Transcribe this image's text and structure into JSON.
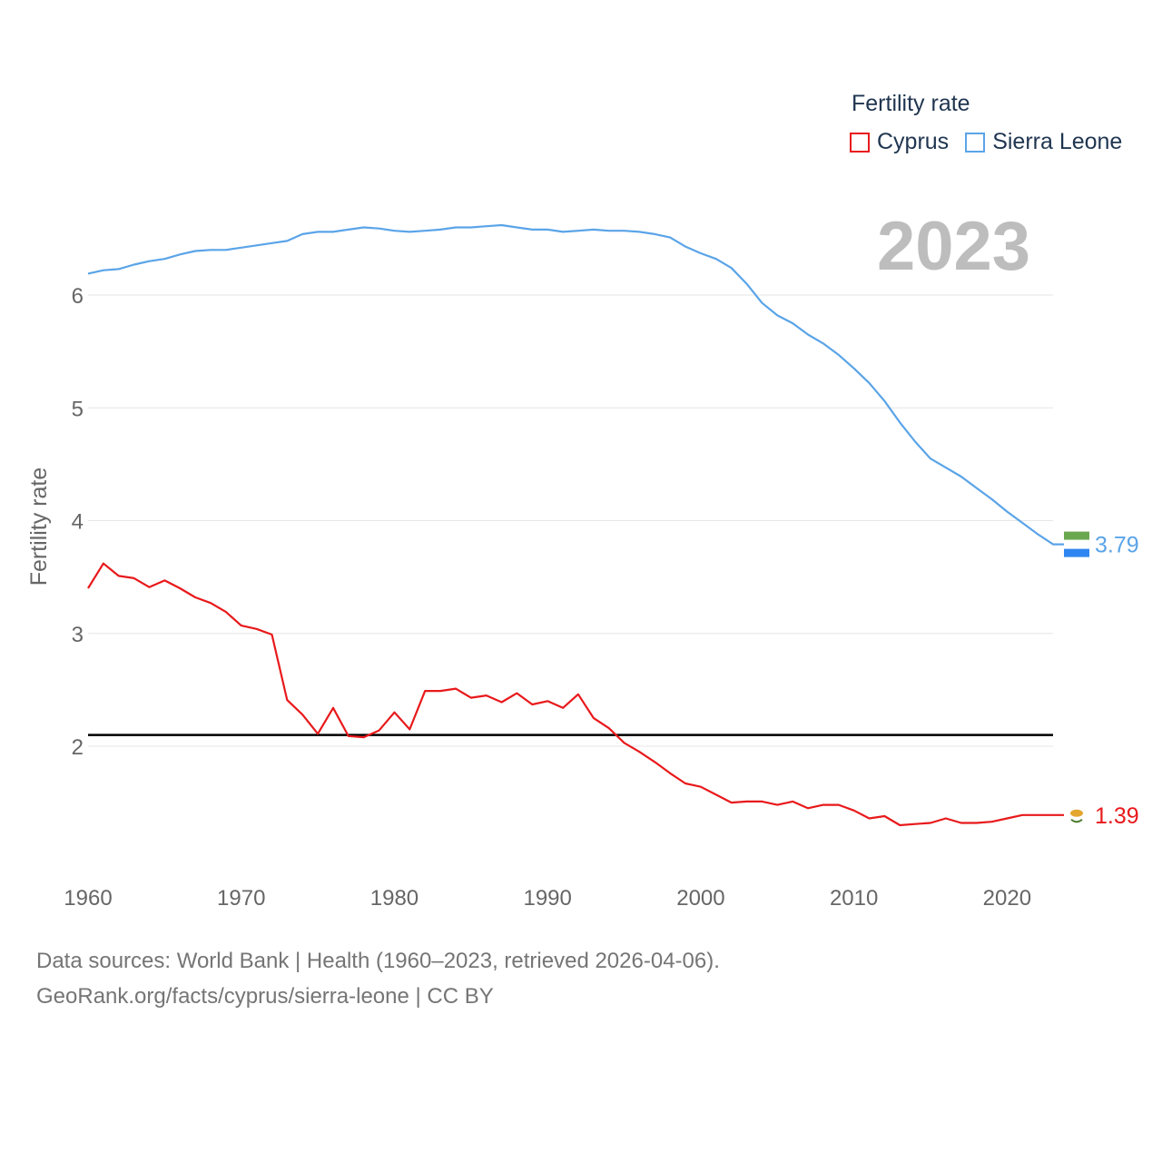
{
  "legend": {
    "title": "Fertility rate",
    "items": [
      {
        "label": "Cyprus",
        "color": "#e8191b"
      },
      {
        "label": "Sierra Leone",
        "color": "#5aa4e8"
      }
    ]
  },
  "current_year": "2023",
  "footer": {
    "line1": "Data sources: World Bank | Health (1960–2023, retrieved 2026-04-06).",
    "line2": "GeoRank.org/facts/cyprus/sierra-leone | CC BY"
  },
  "chart_data": {
    "type": "line",
    "title": "Fertility rate",
    "xlabel": "",
    "ylabel": "Fertility rate",
    "xlim": [
      1960,
      2023
    ],
    "ylim": [
      1.0,
      6.8
    ],
    "x_ticks": [
      1960,
      1970,
      1980,
      1990,
      2000,
      2010,
      2020
    ],
    "y_ticks": [
      2,
      3,
      4,
      5,
      6
    ],
    "grid": true,
    "reference_line": {
      "y": 2.1,
      "color": "#000000"
    },
    "x": [
      1960,
      1961,
      1962,
      1963,
      1964,
      1965,
      1966,
      1967,
      1968,
      1969,
      1970,
      1971,
      1972,
      1973,
      1974,
      1975,
      1976,
      1977,
      1978,
      1979,
      1980,
      1981,
      1982,
      1983,
      1984,
      1985,
      1986,
      1987,
      1988,
      1989,
      1990,
      1991,
      1992,
      1993,
      1994,
      1995,
      1996,
      1997,
      1998,
      1999,
      2000,
      2001,
      2002,
      2003,
      2004,
      2005,
      2006,
      2007,
      2008,
      2009,
      2010,
      2011,
      2012,
      2013,
      2014,
      2015,
      2016,
      2017,
      2018,
      2019,
      2020,
      2021,
      2022,
      2023
    ],
    "series": [
      {
        "name": "Cyprus",
        "color": "#e8191b",
        "end_label": "1.39",
        "values": [
          3.4,
          3.62,
          3.51,
          3.49,
          3.41,
          3.47,
          3.4,
          3.32,
          3.27,
          3.19,
          3.07,
          3.04,
          2.99,
          2.41,
          2.28,
          2.11,
          2.34,
          2.09,
          2.08,
          2.14,
          2.3,
          2.15,
          2.49,
          2.49,
          2.51,
          2.43,
          2.45,
          2.39,
          2.47,
          2.37,
          2.4,
          2.34,
          2.46,
          2.25,
          2.16,
          2.03,
          1.95,
          1.86,
          1.76,
          1.67,
          1.64,
          1.57,
          1.5,
          1.51,
          1.51,
          1.48,
          1.51,
          1.45,
          1.48,
          1.48,
          1.43,
          1.36,
          1.38,
          1.3,
          1.31,
          1.32,
          1.36,
          1.32,
          1.32,
          1.33,
          1.36,
          1.39,
          1.39,
          1.39
        ]
      },
      {
        "name": "Sierra Leone",
        "color": "#5aa4e8",
        "end_label": "3.79",
        "values": [
          6.19,
          6.22,
          6.23,
          6.27,
          6.3,
          6.32,
          6.36,
          6.39,
          6.4,
          6.4,
          6.42,
          6.44,
          6.46,
          6.48,
          6.54,
          6.56,
          6.56,
          6.58,
          6.6,
          6.59,
          6.57,
          6.56,
          6.57,
          6.58,
          6.6,
          6.6,
          6.61,
          6.62,
          6.6,
          6.58,
          6.58,
          6.56,
          6.57,
          6.58,
          6.57,
          6.57,
          6.56,
          6.54,
          6.51,
          6.43,
          6.37,
          6.32,
          6.24,
          6.1,
          5.93,
          5.82,
          5.75,
          5.65,
          5.57,
          5.47,
          5.35,
          5.22,
          5.06,
          4.87,
          4.7,
          4.55,
          4.47,
          4.39,
          4.29,
          4.19,
          4.08,
          3.98,
          3.88,
          3.79
        ]
      }
    ]
  }
}
